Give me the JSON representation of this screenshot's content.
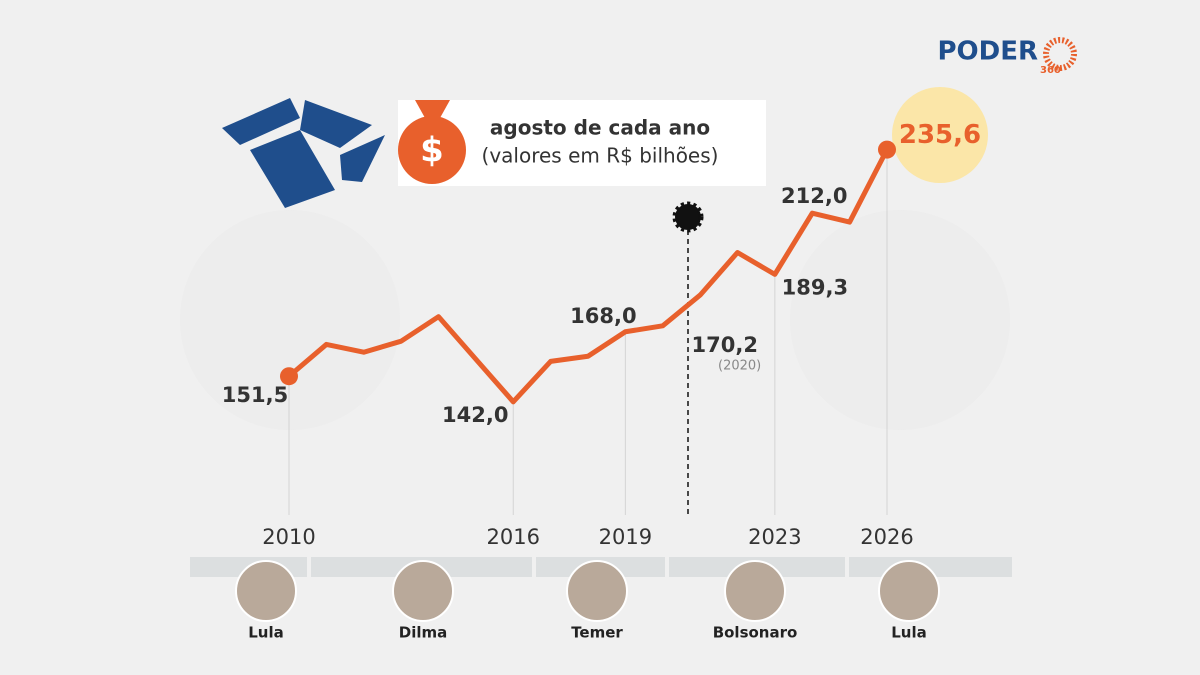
{
  "chart_data": {
    "type": "line",
    "header": {
      "line1": "agosto de cada ano",
      "line2": "(valores em R$ bilhões)"
    },
    "brand": {
      "name": "PODER",
      "number": "360"
    },
    "x": [
      2010,
      2011,
      2012,
      2013,
      2014,
      2015,
      2016,
      2017,
      2018,
      2019,
      2020,
      2021,
      2022,
      2023,
      2024,
      2025,
      2026
    ],
    "values": [
      151.5,
      163.3,
      160.4,
      164.5,
      173.6,
      157.8,
      142.0,
      157.0,
      158.9,
      168.0,
      170.2,
      181.6,
      197.4,
      189.3,
      212.0,
      208.7,
      235.6
    ],
    "value_labels": [
      "151,5",
      null,
      null,
      null,
      null,
      null,
      "142,0",
      null,
      null,
      "168,0",
      "170,2",
      null,
      null,
      "189,3",
      "212,0",
      null,
      "235,6"
    ],
    "annotation": "(2020)",
    "color": "#e8602c",
    "xlim": [
      2010,
      2026
    ],
    "xticks": [
      2010,
      2016,
      2019,
      2023,
      2026
    ],
    "ylim": [
      100,
      254
    ],
    "presidents": [
      "Lula",
      "Dilma",
      "Temer",
      "Bolsonaro",
      "Lula"
    ]
  }
}
